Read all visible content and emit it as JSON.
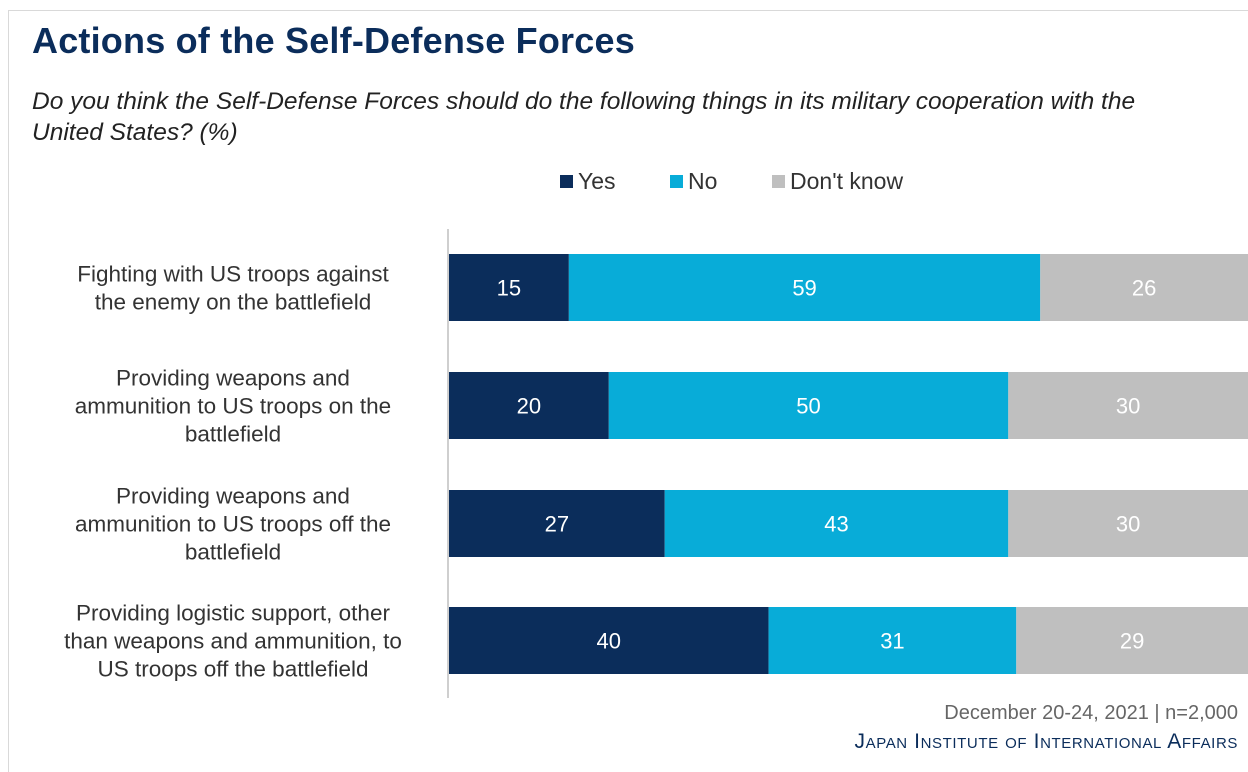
{
  "header": {
    "title": "Actions of the Self-Defense Forces",
    "subtitle": "Do you think the Self-Defense Forces should do the following things in its military cooperation with the United States? (%)"
  },
  "footer": {
    "source": "December 20-24, 2021 | n=2,000",
    "brand": "Japan Institute of International Affairs"
  },
  "colors": {
    "yes": "#0b2d5b",
    "no": "#08acd8",
    "dont_know": "#bfbfbf"
  },
  "chart_data": {
    "type": "bar",
    "orientation": "horizontal",
    "stacked": true,
    "title": "Actions of the Self-Defense Forces",
    "subtitle": "Do you think the Self-Defense Forces should do the following things in its military cooperation with the United States? (%)",
    "xlabel": "",
    "ylabel": "",
    "xlim": [
      0,
      100
    ],
    "legend_position": "top-center",
    "grid": false,
    "categories": [
      "Fighting with US troops against the enemy on the battlefield",
      "Providing weapons and ammunition to US troops on the battlefield",
      "Providing weapons and ammunition to US troops off the battlefield",
      "Providing logistic support, other than weapons and ammunition, to US troops off the battlefield"
    ],
    "series": [
      {
        "name": "Yes",
        "color": "#0b2d5b",
        "values": [
          15,
          20,
          27,
          40
        ]
      },
      {
        "name": "No",
        "color": "#08acd8",
        "values": [
          59,
          50,
          43,
          31
        ]
      },
      {
        "name": "Don't know",
        "color": "#bfbfbf",
        "values": [
          26,
          30,
          30,
          29
        ]
      }
    ]
  }
}
